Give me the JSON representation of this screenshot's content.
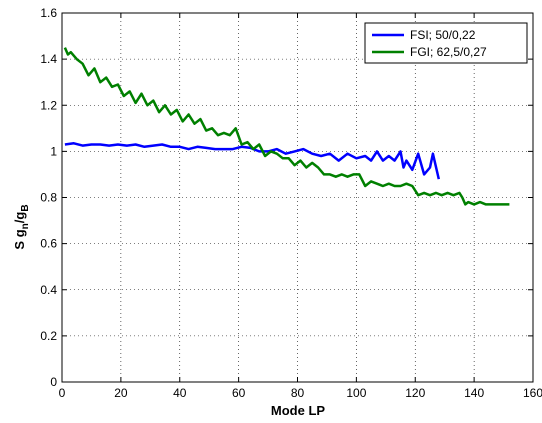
{
  "chart_data": {
    "type": "line",
    "xlabel": "Mode LP",
    "ylabel": {
      "main": "S g",
      "sub1": "n",
      "mid": "/g",
      "sub2": "B"
    },
    "xlim": [
      0,
      160
    ],
    "ylim": [
      0,
      1.6
    ],
    "xticks": [
      0,
      20,
      40,
      60,
      80,
      100,
      120,
      140,
      160
    ],
    "yticks": [
      0,
      0.2,
      0.4,
      0.6,
      0.8,
      1,
      1.2,
      1.4,
      1.6
    ],
    "xtick_labels": [
      "0",
      "20",
      "40",
      "60",
      "80",
      "100",
      "120",
      "140",
      "160"
    ],
    "ytick_labels": [
      "0",
      "0.2",
      "0.4",
      "0.6",
      "0.8",
      "1",
      "1.2",
      "1.4",
      "1.6"
    ],
    "grid": true,
    "legend_position": "top-right",
    "series": [
      {
        "name": "FSI; 50/0,22",
        "color": "#0000ff",
        "x": [
          1,
          4,
          7,
          10,
          13,
          16,
          19,
          22,
          25,
          28,
          31,
          34,
          37,
          40,
          43,
          46,
          49,
          52,
          55,
          58,
          61,
          64,
          67,
          70,
          73,
          76,
          79,
          82,
          85,
          88,
          91,
          94,
          97,
          100,
          103,
          105,
          107,
          109,
          111,
          113,
          115,
          116,
          117,
          119,
          121,
          123,
          125,
          126,
          128
        ],
        "y": [
          1.03,
          1.035,
          1.025,
          1.03,
          1.03,
          1.025,
          1.03,
          1.025,
          1.03,
          1.02,
          1.025,
          1.03,
          1.02,
          1.02,
          1.01,
          1.02,
          1.015,
          1.01,
          1.01,
          1.01,
          1.02,
          1.015,
          1.0,
          1.0,
          1.01,
          0.99,
          1.0,
          1.01,
          0.99,
          0.98,
          0.99,
          0.96,
          0.99,
          0.97,
          0.98,
          0.96,
          1.0,
          0.96,
          0.98,
          0.96,
          1.0,
          0.93,
          0.96,
          0.92,
          0.99,
          0.9,
          0.93,
          0.99,
          0.88
        ]
      },
      {
        "name": "FGI; 62,5/0,27",
        "color": "#008000",
        "x": [
          1,
          2,
          3,
          5,
          7,
          9,
          11,
          13,
          15,
          17,
          19,
          21,
          23,
          25,
          27,
          29,
          31,
          33,
          35,
          37,
          39,
          41,
          43,
          45,
          47,
          49,
          51,
          53,
          55,
          57,
          59,
          61,
          63,
          65,
          67,
          69,
          71,
          73,
          75,
          77,
          79,
          81,
          83,
          85,
          87,
          89,
          91,
          93,
          95,
          97,
          99,
          101,
          103,
          105,
          107,
          109,
          111,
          113,
          115,
          117,
          119,
          121,
          123,
          125,
          127,
          129,
          131,
          133,
          135,
          136,
          137,
          138,
          140,
          142,
          144,
          146,
          148,
          150,
          152
        ],
        "y": [
          1.45,
          1.42,
          1.43,
          1.4,
          1.38,
          1.33,
          1.36,
          1.3,
          1.32,
          1.28,
          1.29,
          1.24,
          1.26,
          1.21,
          1.25,
          1.2,
          1.22,
          1.17,
          1.2,
          1.16,
          1.18,
          1.13,
          1.16,
          1.12,
          1.14,
          1.09,
          1.1,
          1.07,
          1.08,
          1.07,
          1.1,
          1.03,
          1.04,
          1.01,
          1.03,
          0.98,
          1.0,
          0.99,
          0.97,
          0.97,
          0.94,
          0.96,
          0.93,
          0.95,
          0.93,
          0.9,
          0.9,
          0.89,
          0.9,
          0.89,
          0.9,
          0.9,
          0.85,
          0.87,
          0.86,
          0.85,
          0.86,
          0.85,
          0.85,
          0.86,
          0.85,
          0.81,
          0.82,
          0.81,
          0.82,
          0.81,
          0.82,
          0.81,
          0.82,
          0.8,
          0.77,
          0.78,
          0.77,
          0.78,
          0.77,
          0.77,
          0.77,
          0.77,
          0.77
        ]
      }
    ]
  }
}
